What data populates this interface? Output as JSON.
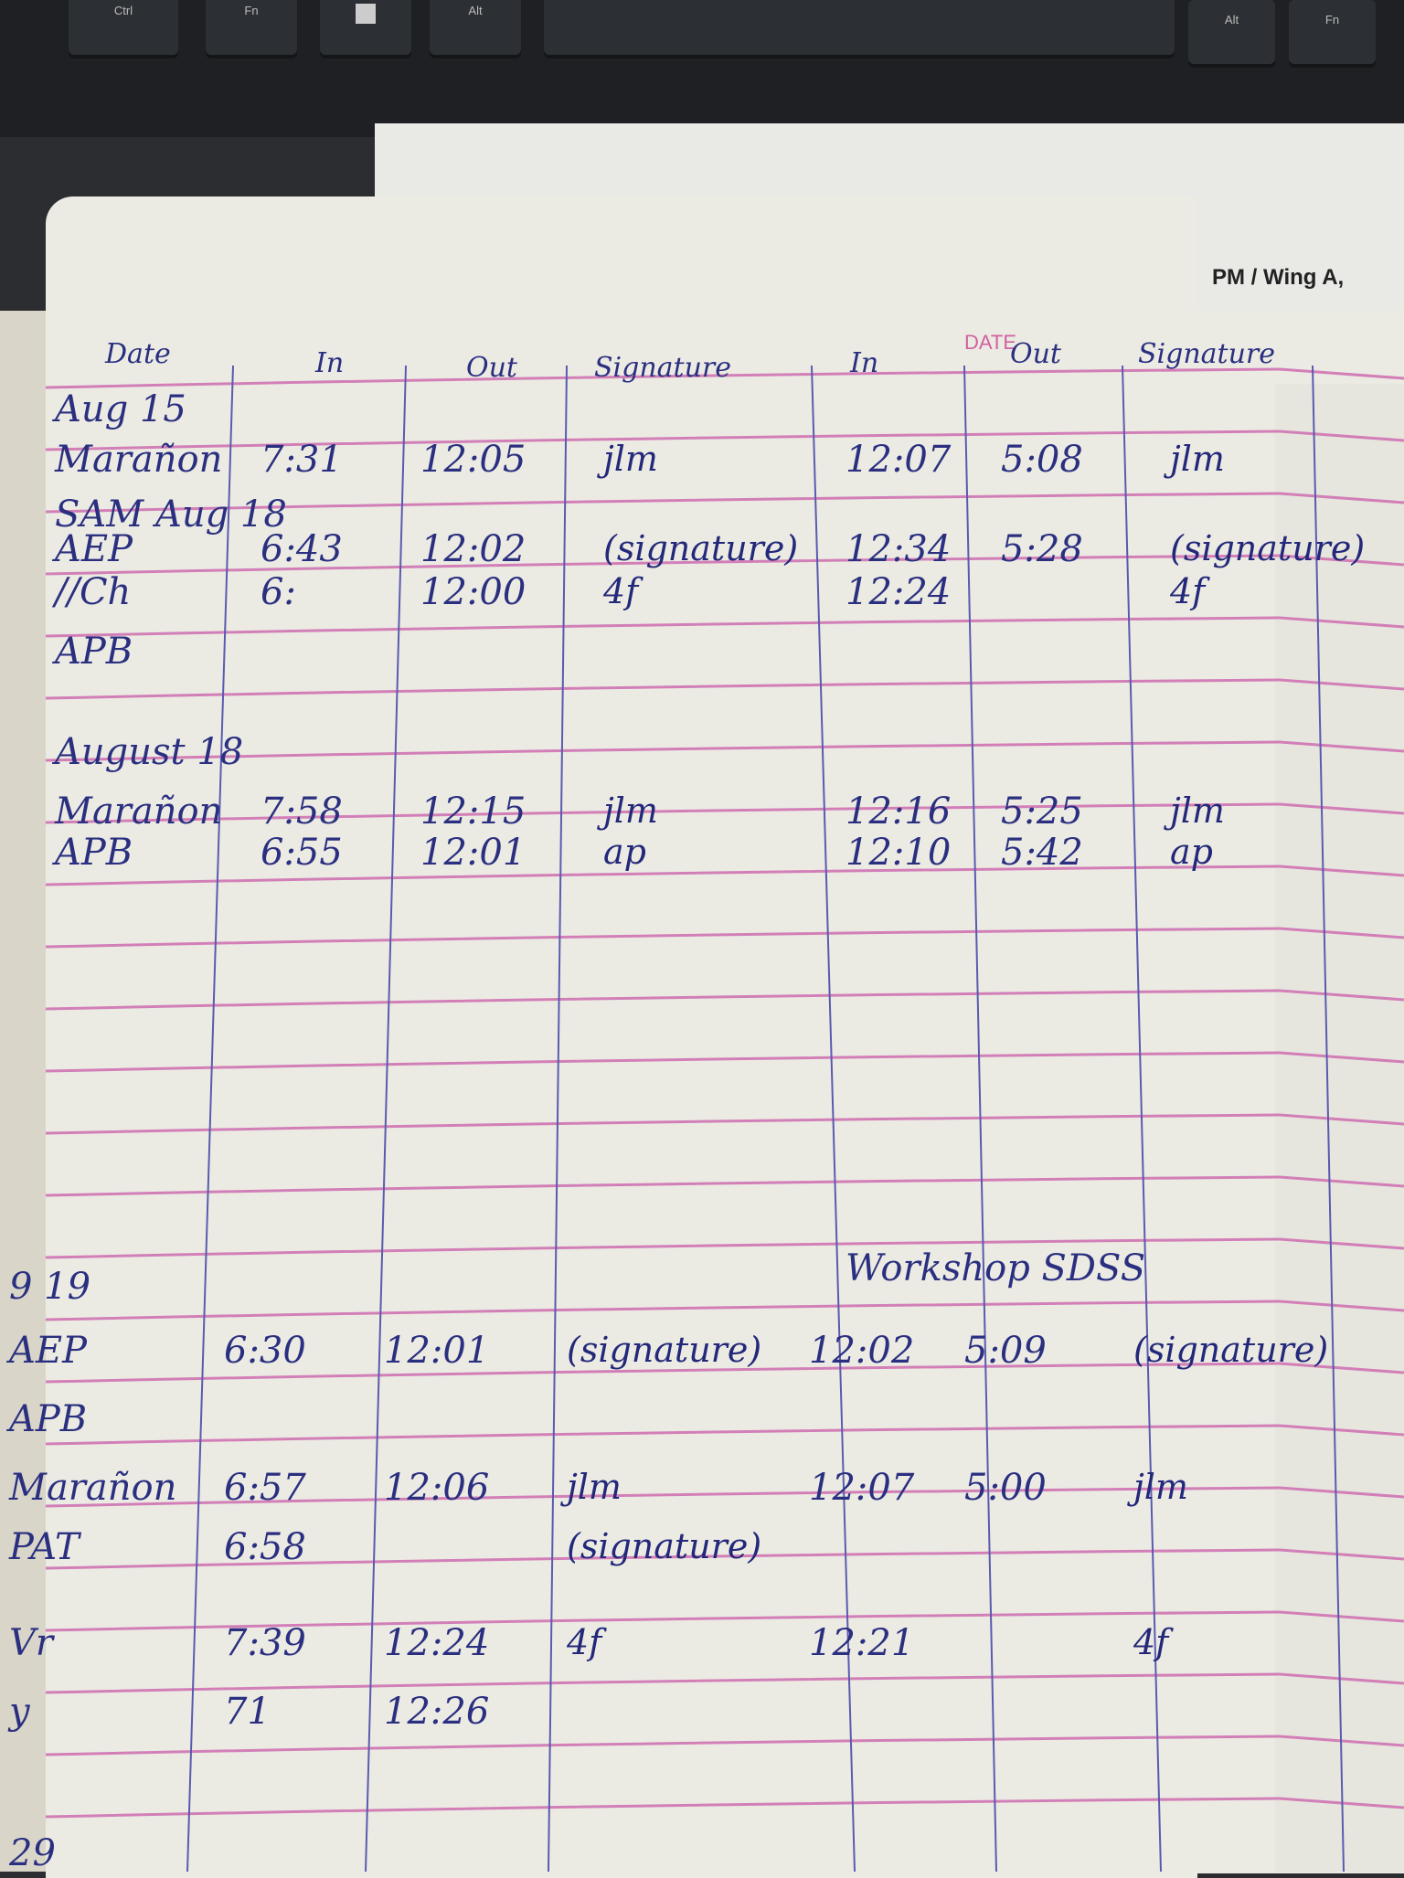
{
  "keyboard": {
    "keys": [
      "Ctrl",
      "Fn",
      "",
      "Alt",
      "Alt",
      "Fn"
    ]
  },
  "printed_sheet": {
    "text": "PM / Wing A,"
  },
  "date_stamp": "DATE",
  "header": {
    "date": "Date",
    "am_in": "In",
    "am_out": "Out",
    "am_signature": "Signature",
    "pm_in": "In",
    "pm_out": "Out",
    "pm_signature": "Signature"
  },
  "entries": [
    {
      "label": "Aug 15"
    },
    {
      "label": "Marañon",
      "am_in": "7:31",
      "am_out": "12:05",
      "am_sig": "jlm",
      "pm_in": "12:07",
      "pm_out": "5:08",
      "pm_sig": "jlm"
    },
    {
      "label": "SAM  Aug 18"
    },
    {
      "label": "AEP",
      "am_in": "6:43",
      "am_out": "12:02",
      "am_sig": "(signature)",
      "pm_in": "12:34",
      "pm_out": "5:28",
      "pm_sig": "(signature)"
    },
    {
      "label": "//Ch",
      "am_in": "6:",
      "am_out": "12:00",
      "am_sig": "4f",
      "pm_in": "12:24",
      "pm_sig": "4f"
    },
    {
      "label": "APB"
    },
    {
      "label": "August 18"
    },
    {
      "label": "Marañon",
      "am_in": "7:58",
      "am_out": "12:15",
      "am_sig": "jlm",
      "pm_in": "12:16",
      "pm_out": "5:25",
      "pm_sig": "jlm"
    },
    {
      "label": "APB",
      "am_in": "6:55",
      "am_out": "12:01",
      "am_sig": "ap",
      "pm_in": "12:10",
      "pm_out": "5:42",
      "pm_sig": "ap"
    },
    {
      "label": "9 19",
      "note": "Workshop SDSS"
    },
    {
      "label": "AEP",
      "am_in": "6:30",
      "am_out": "12:01",
      "am_sig": "(signature)",
      "pm_in": "12:02",
      "pm_out": "5:09",
      "pm_sig": "(signature)"
    },
    {
      "label": "APB"
    },
    {
      "label": "Marañon",
      "am_in": "6:57",
      "am_out": "12:06",
      "am_sig": "jlm",
      "pm_in": "12:07",
      "pm_out": "5:00",
      "pm_sig": "jlm"
    },
    {
      "label": "PAT",
      "am_in": "6:58",
      "am_sig": "(signature)"
    },
    {
      "label": "Vr",
      "am_in": "7:39",
      "am_out": "12:24",
      "am_sig": "4f",
      "pm_in": "12:21",
      "pm_sig": "4f"
    },
    {
      "label": "y",
      "am_in": "71",
      "am_out": "12:26"
    },
    {
      "label": "29"
    }
  ],
  "colors": {
    "ink": "#2a2f80",
    "rule_pink": "#d27fb8",
    "rule_blue": "#5a5ab0",
    "paper": "#ecebe3"
  }
}
